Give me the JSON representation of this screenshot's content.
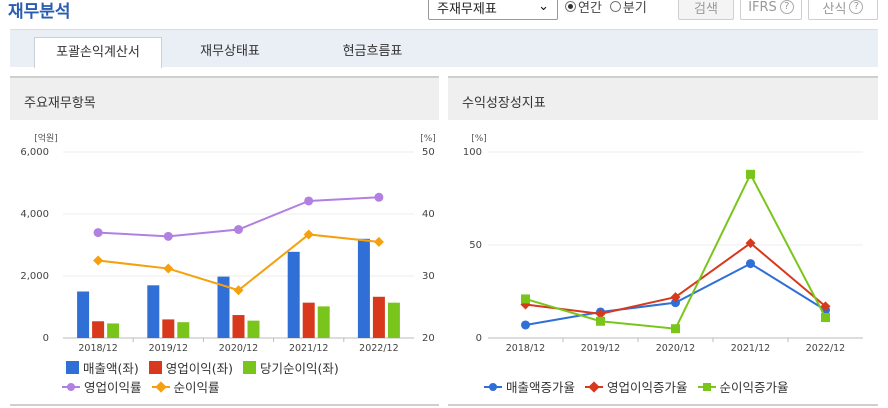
{
  "header": {
    "title": "재무분석",
    "select_value": "주재무제표",
    "radio_annual": "연간",
    "radio_quarter": "분기",
    "search_label": "검색",
    "ifrs_label": "IFRS",
    "calc_label": "산식",
    "help_glyph": "?"
  },
  "tabs": [
    {
      "label": "포괄손익계산서",
      "active": true
    },
    {
      "label": "재무상태표",
      "active": false
    },
    {
      "label": "현금흐름표",
      "active": false
    }
  ],
  "left_panel": {
    "title": "주요재무항목",
    "unit_left": "[억원]",
    "unit_right": "[%]",
    "legend_row1": [
      "매출액(좌)",
      "영업이익(좌)",
      "당기순이익(좌)"
    ],
    "legend_row2": [
      "영업이익률",
      "순이익률"
    ]
  },
  "right_panel": {
    "title": "수익성장성지표",
    "unit_left": "[%]",
    "legend": [
      "매출액증가율",
      "영업이익증가율",
      "순이익증가율"
    ]
  },
  "chart_data": [
    {
      "type": "bar",
      "title": "주요재무항목",
      "categories": [
        "2018/12",
        "2019/12",
        "2020/12",
        "2021/12",
        "2022/12"
      ],
      "ylabel": "[억원]",
      "ylim": [
        0,
        6000
      ],
      "yticks": [
        "0",
        "2,000",
        "4,000",
        "6,000"
      ],
      "y2label": "[%]",
      "y2lim": [
        20,
        50
      ],
      "y2ticks": [
        "20",
        "30",
        "40",
        "50"
      ],
      "series": [
        {
          "name": "매출액(좌)",
          "kind": "bar",
          "axis": "left",
          "color": "#2f6fd6",
          "values": [
            1500,
            1700,
            1980,
            2780,
            3200
          ]
        },
        {
          "name": "영업이익(좌)",
          "kind": "bar",
          "axis": "left",
          "color": "#d8391d",
          "values": [
            540,
            600,
            740,
            1140,
            1330
          ]
        },
        {
          "name": "당기순이익(좌)",
          "kind": "bar",
          "axis": "left",
          "color": "#7ac51c",
          "values": [
            470,
            510,
            560,
            1020,
            1140
          ]
        },
        {
          "name": "영업이익률",
          "kind": "line",
          "axis": "right",
          "color": "#b180e0",
          "marker": "circle",
          "values": [
            37.0,
            36.4,
            37.5,
            42.1,
            42.7
          ]
        },
        {
          "name": "순이익률",
          "kind": "line",
          "axis": "right",
          "color": "#f5a00f",
          "marker": "diamond",
          "values": [
            32.5,
            31.2,
            27.7,
            36.7,
            35.5
          ]
        }
      ]
    },
    {
      "type": "line",
      "title": "수익성장성지표",
      "categories": [
        "2018/12",
        "2019/12",
        "2020/12",
        "2021/12",
        "2022/12"
      ],
      "ylabel": "[%]",
      "ylim": [
        0,
        100
      ],
      "yticks": [
        "0",
        "50",
        "100"
      ],
      "series": [
        {
          "name": "매출액증가율",
          "color": "#2f6fd6",
          "marker": "circle",
          "values": [
            7,
            14,
            19,
            40,
            15
          ]
        },
        {
          "name": "영업이익증가율",
          "color": "#d8391d",
          "marker": "diamond",
          "values": [
            18,
            13,
            22,
            51,
            17
          ]
        },
        {
          "name": "순이익증가율",
          "color": "#7ac51c",
          "marker": "square",
          "values": [
            21,
            9,
            5,
            88,
            11
          ]
        }
      ]
    }
  ]
}
